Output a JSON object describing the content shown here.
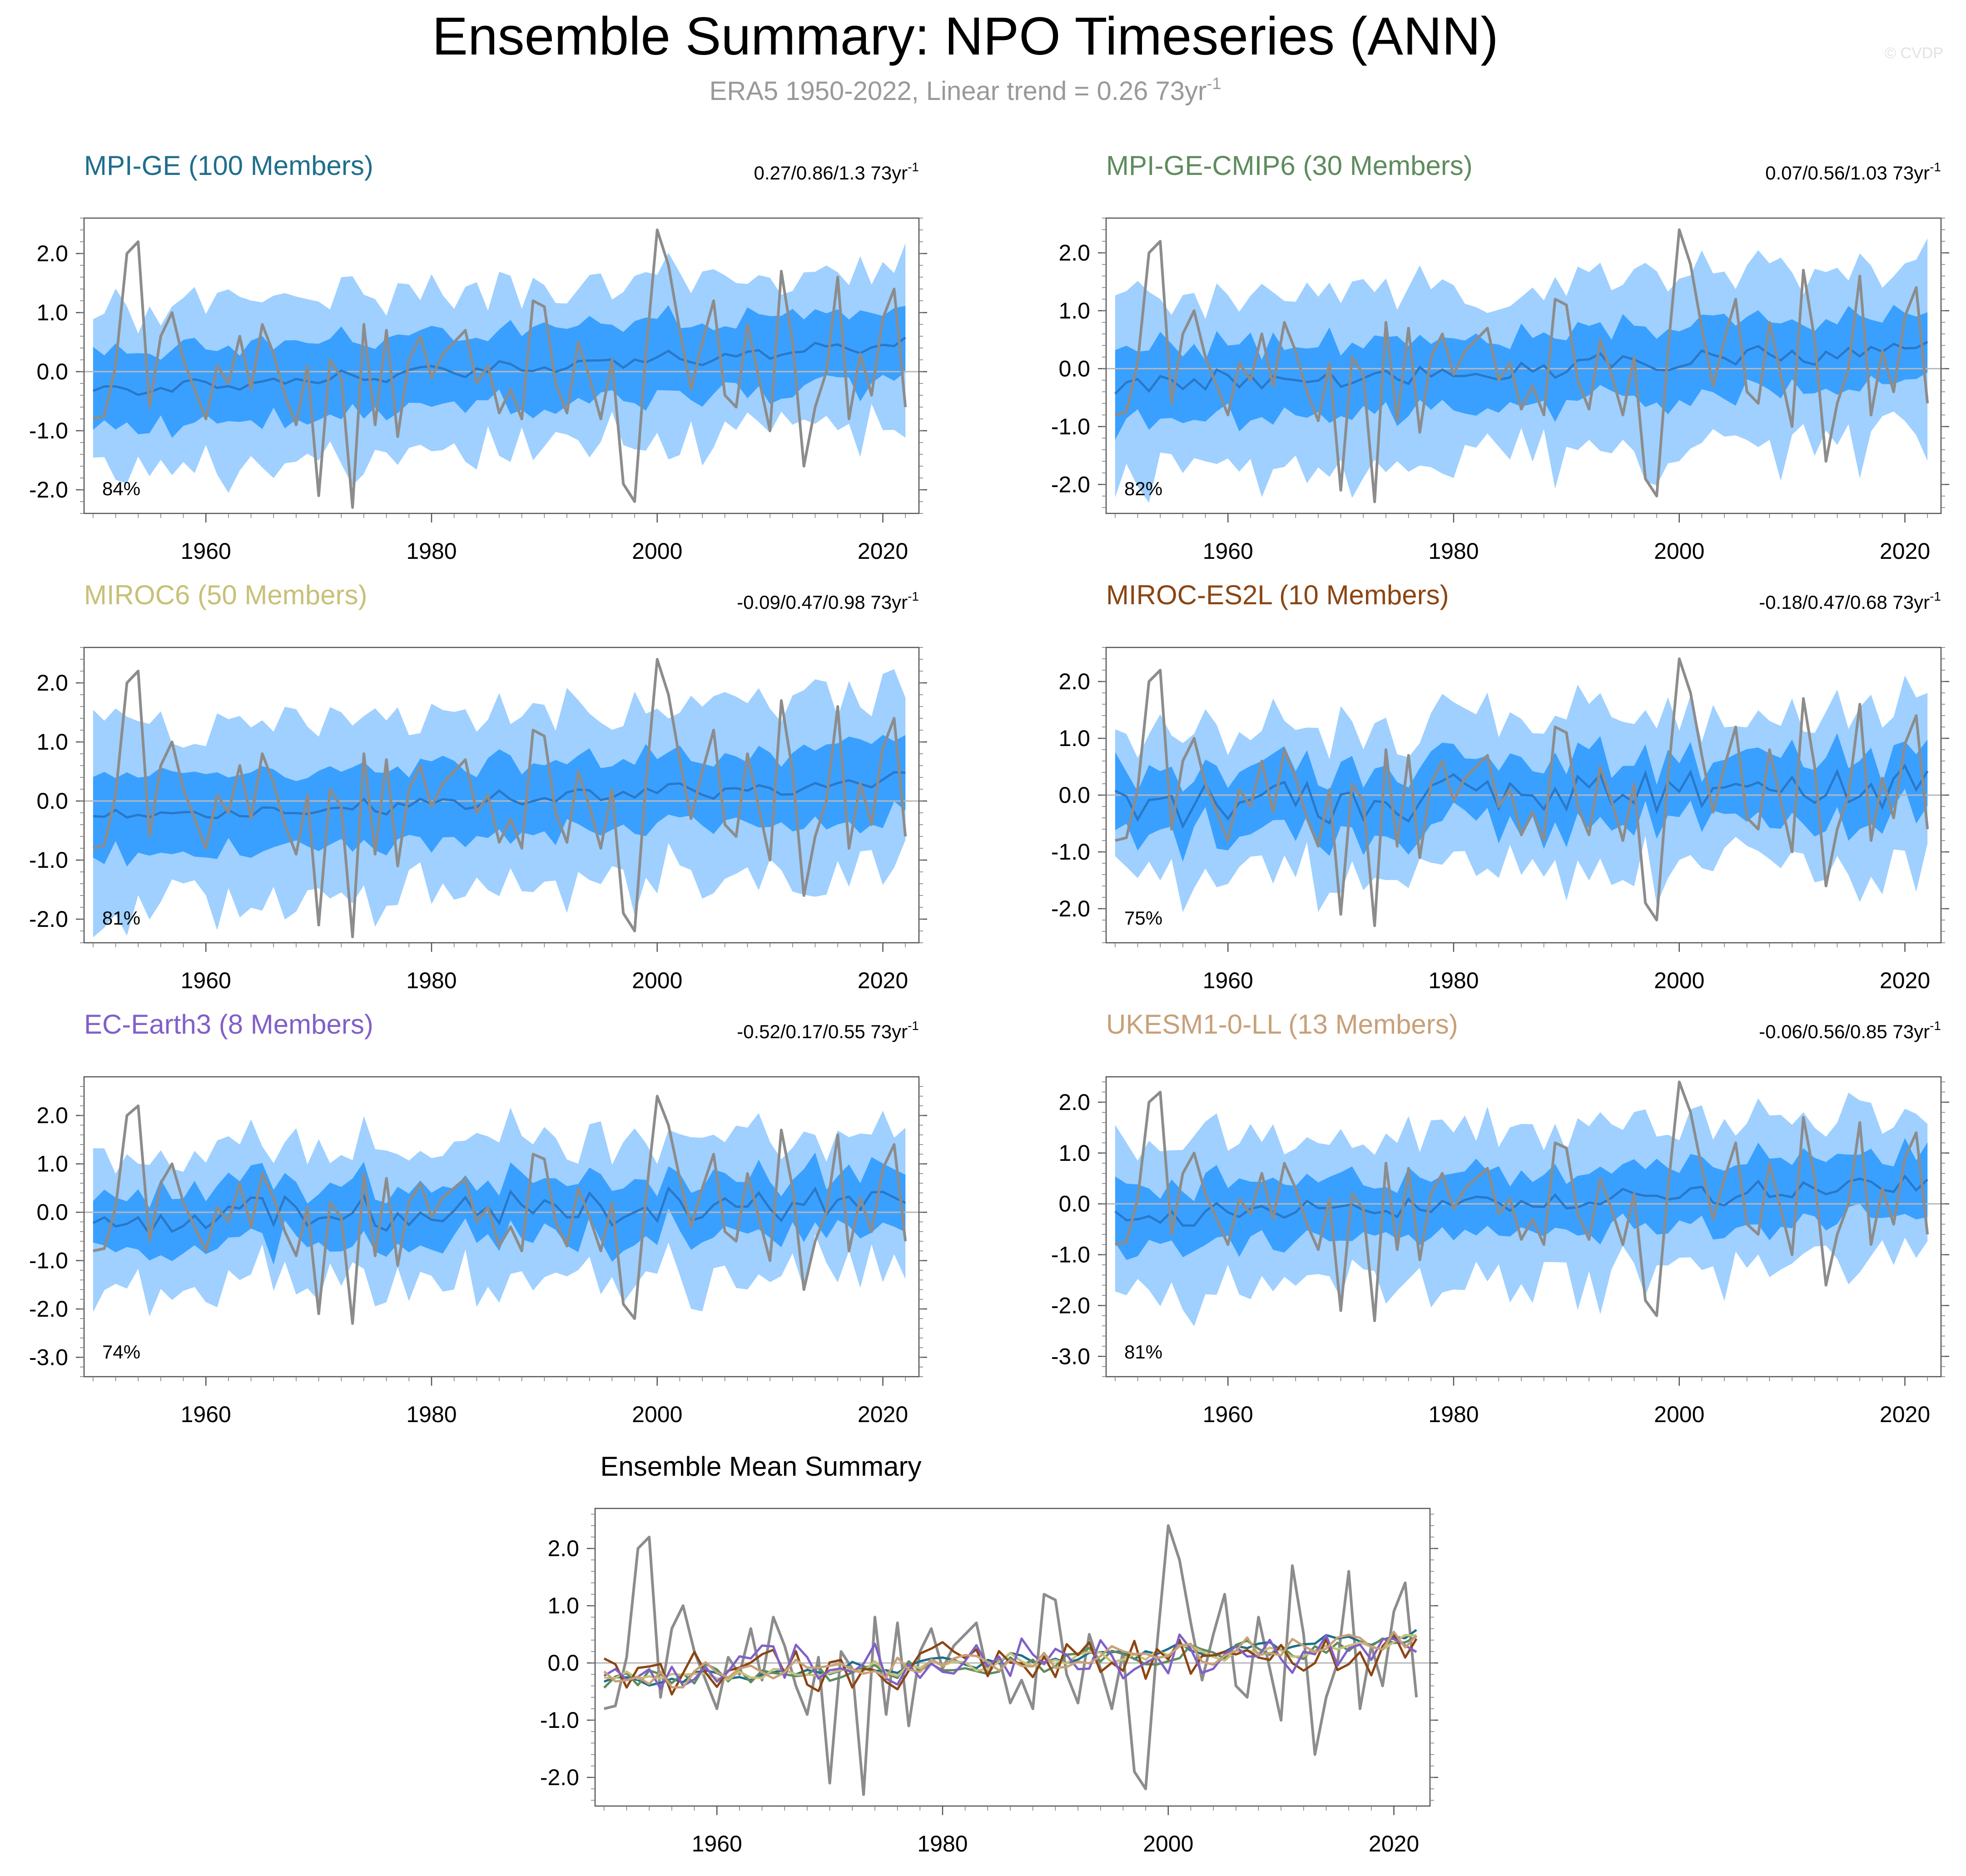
{
  "page": {
    "title": "Ensemble Summary: NPO Timeseries (ANN)",
    "subtitle_main": "ERA5 1950-2022, Linear trend = 0.26 73yr",
    "subtitle_sup": "-1",
    "copyright": "© CVDP"
  },
  "colors": {
    "outer_band": "#9fd0ff",
    "inner_band": "#3aa0ff",
    "ens_mean": "#2a78c8",
    "obs": "#8c8c8c",
    "zero_line": "#b8b8b8"
  },
  "chart_data": {
    "type": "line",
    "x_start": 1950,
    "x_end": 2022,
    "xlim": [
      1949.2,
      2023.2
    ],
    "x_ticks": [
      1960,
      1980,
      2000,
      2020
    ],
    "observed": {
      "name": "ERA5",
      "values": [
        -0.8,
        -0.75,
        0.1,
        2.0,
        2.2,
        -0.6,
        0.6,
        1.0,
        0.2,
        -0.3,
        -0.8,
        0.1,
        -0.2,
        0.6,
        -0.3,
        0.8,
        0.3,
        -0.4,
        -0.9,
        0.1,
        -2.1,
        0.2,
        -0.1,
        -2.3,
        0.8,
        -0.9,
        0.7,
        -1.1,
        0.2,
        0.6,
        -0.1,
        0.3,
        0.5,
        0.7,
        -0.2,
        0.1,
        -0.7,
        -0.3,
        -0.8,
        1.2,
        1.1,
        -0.2,
        -0.7,
        0.5,
        -0.1,
        -0.8,
        0.2,
        -1.9,
        -2.2,
        0.3,
        2.4,
        1.8,
        0.7,
        -0.3,
        0.5,
        1.2,
        -0.4,
        -0.6,
        0.8,
        -0.1,
        -1.0,
        1.7,
        0.5,
        -1.6,
        -0.6,
        0.0,
        1.6,
        -0.8,
        0.3,
        -0.4,
        0.9,
        1.4,
        -0.6
      ]
    },
    "panels": [
      {
        "name": "MPI-GE (100 Members)",
        "color": "#1f6e8c",
        "trend_text": "0.27/0.86/1.3 73yr",
        "trend_sup": "-1",
        "percent": "84%",
        "y_ticks": [
          "2.0",
          "1.0",
          "0.0",
          "-1.0",
          "-2.0"
        ],
        "ylim": [
          -2.4,
          2.6
        ],
        "mean_level": [
          -0.35,
          0.45
        ],
        "inner_half": 0.62,
        "outer_half": 1.35,
        "noise": 0.08,
        "seed": 11
      },
      {
        "name": "MPI-GE-CMIP6 (30 Members)",
        "color": "#5e8b5e",
        "trend_text": "0.07/0.56/1.03 73yr",
        "trend_sup": "-1",
        "percent": "82%",
        "y_ticks": [
          "2.0",
          "1.0",
          "0.0",
          "-1.0",
          "-2.0"
        ],
        "ylim": [
          -2.5,
          2.6
        ],
        "mean_level": [
          -0.3,
          0.35
        ],
        "inner_half": 0.62,
        "outer_half": 1.45,
        "noise": 0.18,
        "seed": 23
      },
      {
        "name": "MIROC6 (50 Members)",
        "color": "#c8c078",
        "trend_text": "-0.09/0.47/0.98 73yr",
        "trend_sup": "-1",
        "percent": "81%",
        "y_ticks": [
          "2.0",
          "1.0",
          "0.0",
          "-1.0",
          "-2.0"
        ],
        "ylim": [
          -2.4,
          2.6
        ],
        "mean_level": [
          -0.3,
          0.35
        ],
        "inner_half": 0.62,
        "outer_half": 1.45,
        "noise": 0.12,
        "seed": 37
      },
      {
        "name": "MIROC-ES2L (10 Members)",
        "color": "#8b4513",
        "trend_text": "-0.18/0.47/0.68 73yr",
        "trend_sup": "-1",
        "percent": "75%",
        "y_ticks": [
          "2.0",
          "1.0",
          "0.0",
          "-1.0",
          "-2.0"
        ],
        "ylim": [
          -2.6,
          2.6
        ],
        "mean_level": [
          -0.2,
          0.2
        ],
        "inner_half": 0.55,
        "outer_half": 1.3,
        "noise": 0.4,
        "seed": 41
      },
      {
        "name": "EC-Earth3 (8 Members)",
        "color": "#8060c8",
        "trend_text": "-0.52/0.17/0.55 73yr",
        "trend_sup": "-1",
        "percent": "74%",
        "y_ticks": [
          "2.0",
          "1.0",
          "0.0",
          "-1.0",
          "-2.0",
          "-3.0"
        ],
        "ylim": [
          -3.4,
          2.8
        ],
        "mean_level": [
          -0.1,
          0.2
        ],
        "inner_half": 0.6,
        "outer_half": 1.4,
        "noise": 0.35,
        "seed": 53
      },
      {
        "name": "UKESM1-0-LL (13 Members)",
        "color": "#c8a078",
        "trend_text": "-0.06/0.56/0.85 73yr",
        "trend_sup": "-1",
        "percent": "81%",
        "y_ticks": [
          "2.0",
          "1.0",
          "0.0",
          "-1.0",
          "-2.0",
          "-3.0"
        ],
        "ylim": [
          -3.4,
          2.5
        ],
        "mean_level": [
          -0.3,
          0.4
        ],
        "inner_half": 0.62,
        "outer_half": 1.45,
        "noise": 0.2,
        "seed": 67
      }
    ],
    "summary": {
      "title": "Ensemble Mean Summary",
      "y_ticks": [
        "2.0",
        "1.0",
        "0.0",
        "-1.0",
        "-2.0"
      ],
      "ylim": [
        -2.5,
        2.7
      ]
    }
  }
}
